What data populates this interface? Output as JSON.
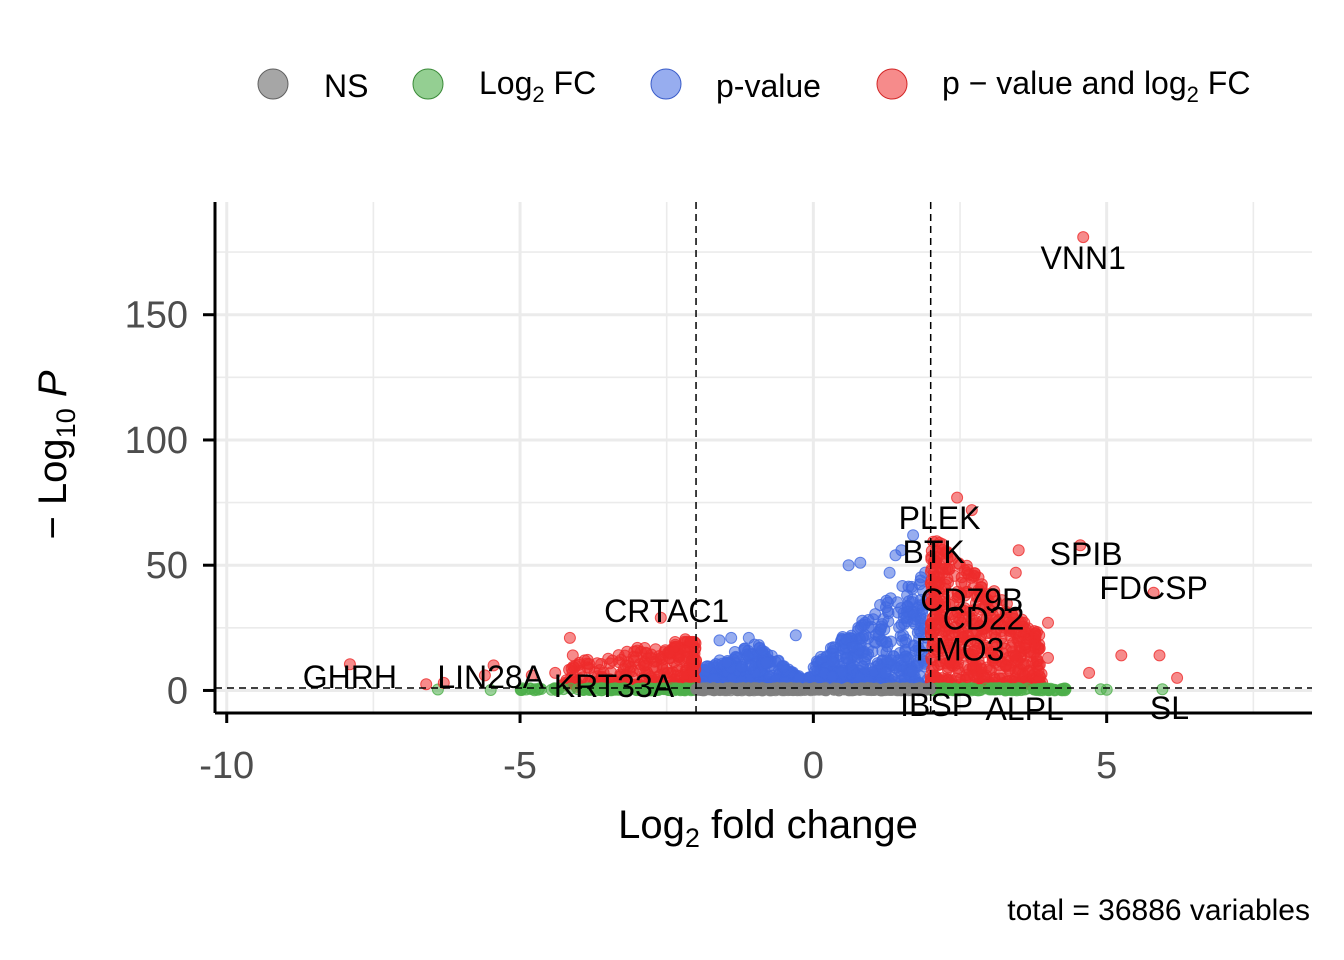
{
  "chart_data": {
    "type": "scatter",
    "subtype": "volcano",
    "title": "",
    "xlabel": "Log2 fold change",
    "ylabel": "−Log10 P",
    "xlim": [
      -10.2,
      8.5
    ],
    "ylim": [
      -9,
      195
    ],
    "xticks": [
      -10,
      -5,
      0,
      5
    ],
    "yticks": [
      0,
      50,
      100,
      150
    ],
    "grid": true,
    "legend_position": "top",
    "fc_cutoff": 2,
    "p_cutoff_log10": 1,
    "caption": "total = 36886 variables",
    "legend": [
      {
        "key": "NS",
        "text": "NS",
        "color": "#808080"
      },
      {
        "key": "FC",
        "text": "Log2 FC",
        "color": "#4daf4a"
      },
      {
        "key": "P",
        "text": "p-value",
        "color": "#4169e1"
      },
      {
        "key": "FC_P",
        "text": "p − value and log2 FC",
        "color": "#ee2c2c"
      }
    ],
    "labels": [
      {
        "text": "VNN1",
        "x": 4.6,
        "y": 181
      },
      {
        "text": "PLEK",
        "x": 2.15,
        "y": 62
      },
      {
        "text": "BTK",
        "x": 2.05,
        "y": 50
      },
      {
        "text": "SPIB",
        "x": 4.65,
        "y": 58
      },
      {
        "text": "CD79B",
        "x": 2.7,
        "y": 35
      },
      {
        "text": "FDCSP",
        "x": 5.8,
        "y": 39
      },
      {
        "text": "CD22",
        "x": 2.9,
        "y": 26
      },
      {
        "text": "CRTAC1",
        "x": -2.5,
        "y": 29
      },
      {
        "text": "FMO3",
        "x": 2.5,
        "y": 12
      },
      {
        "text": "GHRH",
        "x": -7.9,
        "y": 10.5
      },
      {
        "text": "LIN28A",
        "x": -5.5,
        "y": 9
      },
      {
        "text": "KRT33A",
        "x": -3.4,
        "y": 7
      },
      {
        "text": "IBSP",
        "x": 2.1,
        "y": 1
      },
      {
        "text": "ALPL",
        "x": 3.6,
        "y": 1
      },
      {
        "text": "SL",
        "x": 5.9,
        "y": 0.5
      }
    ],
    "highlight_points": {
      "FC_P": [
        [
          4.6,
          181
        ],
        [
          2.45,
          77
        ],
        [
          2.7,
          72
        ],
        [
          3.5,
          56
        ],
        [
          4.55,
          58
        ],
        [
          3.45,
          47
        ],
        [
          5.8,
          39
        ],
        [
          4.0,
          27
        ],
        [
          3.85,
          22
        ],
        [
          4.0,
          13
        ],
        [
          5.9,
          14
        ],
        [
          5.25,
          14
        ],
        [
          6.2,
          5
        ],
        [
          4.7,
          7
        ],
        [
          -2.6,
          29
        ],
        [
          -4.15,
          21
        ],
        [
          -4.1,
          14
        ],
        [
          -3.9,
          12
        ],
        [
          -3.2,
          10
        ],
        [
          -5.45,
          10
        ],
        [
          -7.9,
          10.5
        ],
        [
          -5.6,
          6
        ],
        [
          -6.3,
          3
        ],
        [
          -6.6,
          2.5
        ],
        [
          -4.4,
          7
        ],
        [
          -4.8,
          6
        ],
        [
          -3.0,
          17
        ],
        [
          -2.2,
          16
        ]
      ],
      "P": [
        [
          0.8,
          51
        ],
        [
          0.6,
          50
        ],
        [
          1.5,
          56
        ],
        [
          1.7,
          62
        ],
        [
          1.4,
          54
        ],
        [
          1.3,
          47
        ],
        [
          -0.3,
          22
        ],
        [
          -1.1,
          21
        ],
        [
          -1.4,
          21
        ],
        [
          -1.6,
          20
        ]
      ],
      "FC": [
        [
          5.95,
          0.5
        ],
        [
          4.3,
          0.6
        ],
        [
          4.9,
          0.5
        ],
        [
          5.0,
          0.3
        ],
        [
          3.8,
          0.2
        ],
        [
          3.6,
          0.4
        ],
        [
          -4.9,
          0.4
        ],
        [
          -5.5,
          0.2
        ],
        [
          -6.4,
          0.4
        ],
        [
          -3.6,
          0.2
        ],
        [
          -2.9,
          0.3
        ]
      ],
      "NS": [
        [
          -1.0,
          0.6
        ],
        [
          -0.5,
          0.9
        ],
        [
          0.0,
          0.8
        ],
        [
          0.4,
          0.5
        ],
        [
          1.0,
          0.7
        ],
        [
          1.5,
          0.4
        ],
        [
          -1.6,
          0.3
        ],
        [
          0.7,
          0.2
        ]
      ]
    }
  }
}
